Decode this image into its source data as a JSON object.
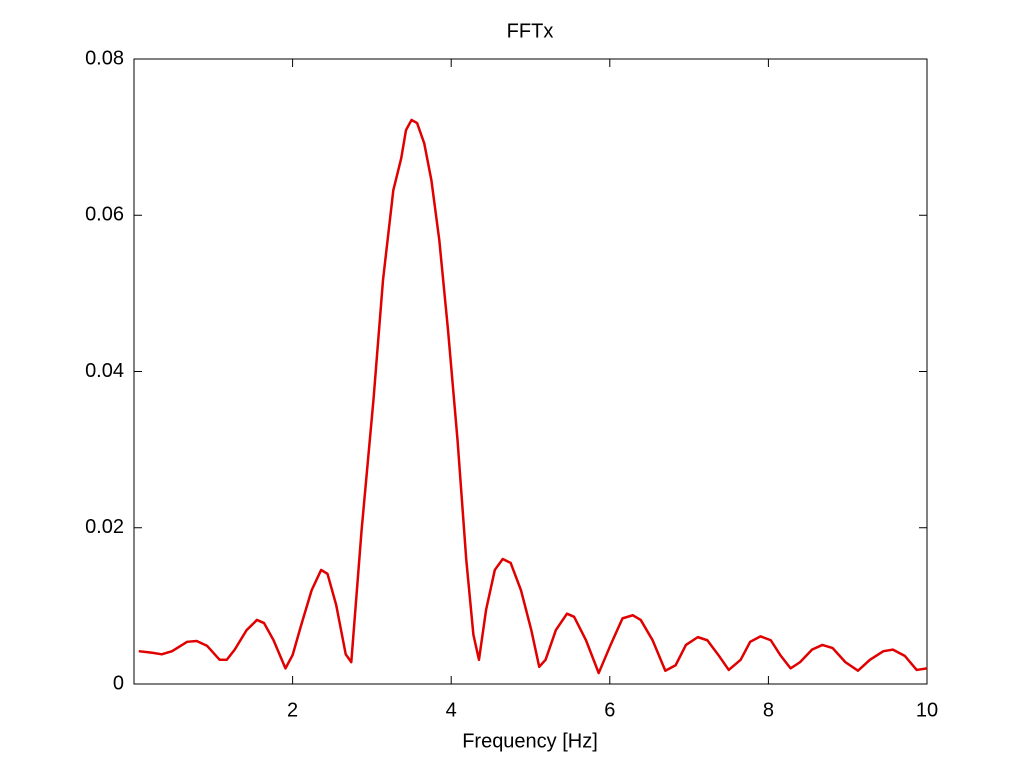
{
  "chart_data": {
    "type": "line",
    "title": "FFTx",
    "x_label": "Frequency [Hz]",
    "xlim": [
      0,
      10
    ],
    "ylim": [
      0,
      0.08
    ],
    "xticks": [
      2,
      4,
      6,
      8,
      10
    ],
    "yticks": [
      0,
      0.02,
      0.04,
      0.06,
      0.08
    ],
    "grid": false,
    "series": [
      {
        "color": "#e00000",
        "x": [
          0.06,
          0.23,
          0.35,
          0.48,
          0.67,
          0.79,
          0.92,
          1.08,
          1.17,
          1.27,
          1.42,
          1.55,
          1.64,
          1.76,
          1.91,
          2.0,
          2.11,
          2.24,
          2.36,
          2.44,
          2.55,
          2.67,
          2.74,
          2.87,
          3.02,
          3.14,
          3.27,
          3.37,
          3.43,
          3.5,
          3.57,
          3.66,
          3.75,
          3.85,
          3.96,
          4.08,
          4.19,
          4.28,
          4.35,
          4.44,
          4.55,
          4.65,
          4.75,
          4.88,
          5.01,
          5.11,
          5.19,
          5.32,
          5.46,
          5.55,
          5.7,
          5.86,
          6.01,
          6.16,
          6.29,
          6.39,
          6.54,
          6.7,
          6.83,
          6.96,
          7.11,
          7.23,
          7.37,
          7.5,
          7.65,
          7.77,
          7.9,
          8.03,
          8.15,
          8.28,
          8.4,
          8.55,
          8.68,
          8.81,
          8.97,
          9.13,
          9.28,
          9.45,
          9.57,
          9.72,
          9.87,
          10.0
        ],
        "values": [
          0.0042,
          0.004,
          0.0038,
          0.0042,
          0.0054,
          0.0055,
          0.0049,
          0.0031,
          0.0031,
          0.0044,
          0.0069,
          0.0082,
          0.0078,
          0.0056,
          0.002,
          0.0037,
          0.0076,
          0.012,
          0.0146,
          0.0141,
          0.0101,
          0.0038,
          0.0028,
          0.0197,
          0.0364,
          0.0517,
          0.0632,
          0.0673,
          0.0709,
          0.0722,
          0.0718,
          0.0692,
          0.0645,
          0.0568,
          0.0453,
          0.0312,
          0.0159,
          0.0063,
          0.0031,
          0.0095,
          0.0146,
          0.016,
          0.0155,
          0.012,
          0.0069,
          0.0022,
          0.0031,
          0.0069,
          0.009,
          0.0086,
          0.0056,
          0.0014,
          0.005,
          0.0084,
          0.0088,
          0.0082,
          0.0056,
          0.0017,
          0.0024,
          0.005,
          0.006,
          0.0056,
          0.0037,
          0.0018,
          0.0031,
          0.0054,
          0.0061,
          0.0056,
          0.0037,
          0.002,
          0.0028,
          0.0044,
          0.005,
          0.0046,
          0.0028,
          0.0017,
          0.0031,
          0.0042,
          0.0044,
          0.0036,
          0.0018,
          0.002
        ]
      }
    ]
  }
}
